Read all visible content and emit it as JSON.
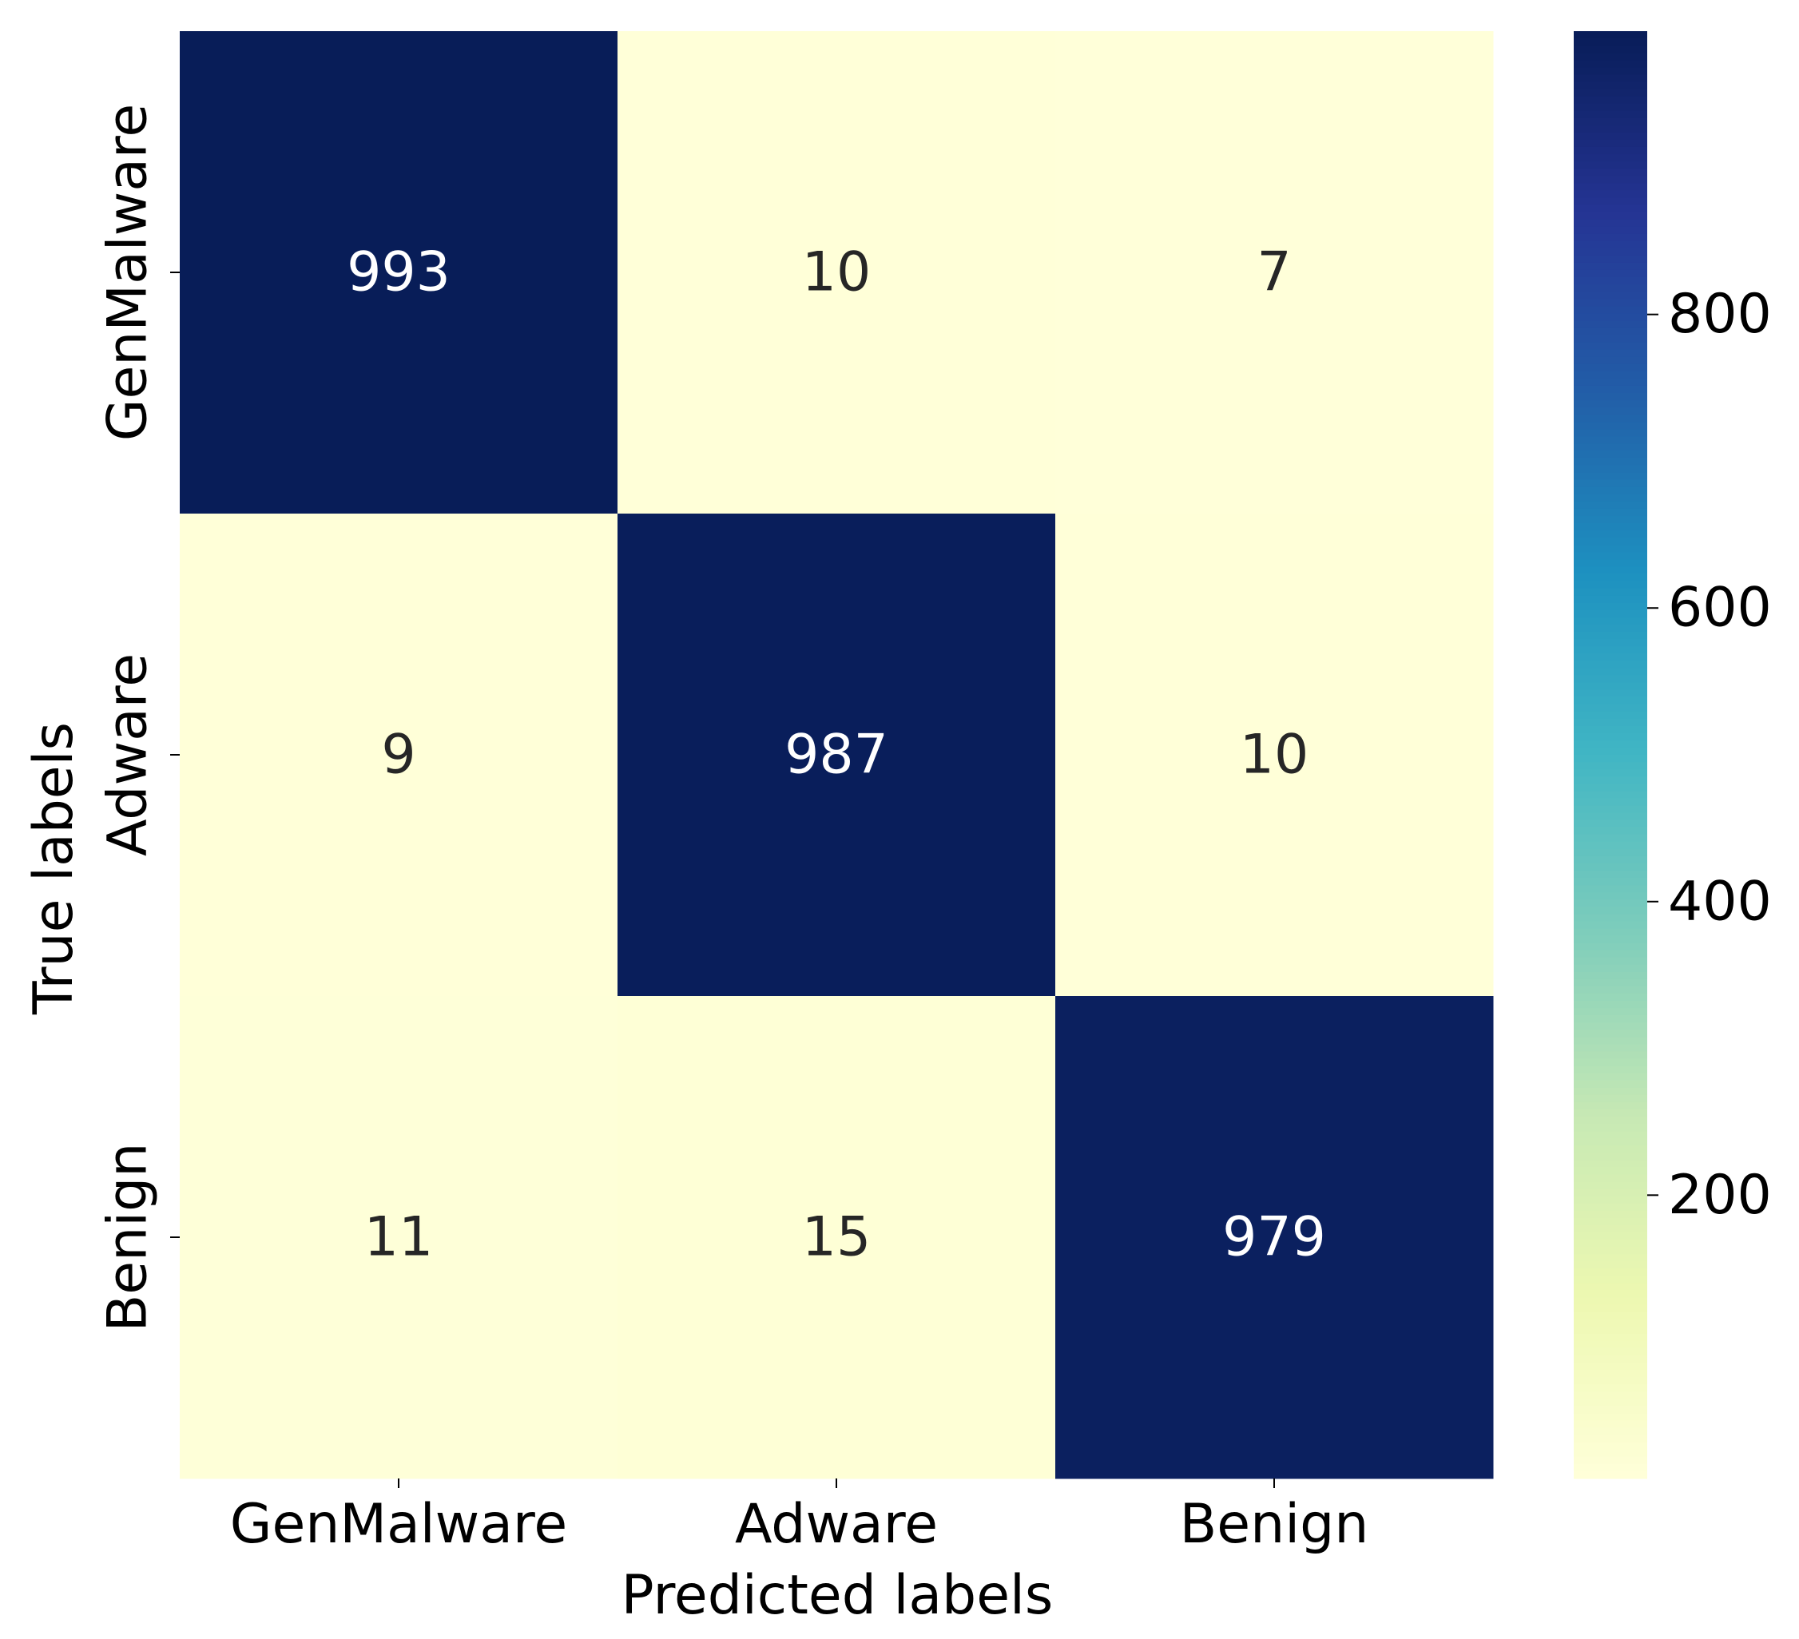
{
  "chart_data": {
    "type": "heatmap",
    "title": "",
    "xlabel": "Predicted labels",
    "ylabel": "True labels",
    "x_categories": [
      "GenMalware",
      "Adware",
      "Benign"
    ],
    "y_categories": [
      "GenMalware",
      "Adware",
      "Benign"
    ],
    "values": [
      [
        993,
        10,
        7
      ],
      [
        9,
        987,
        10
      ],
      [
        11,
        15,
        979
      ]
    ],
    "annotations": [
      [
        "993",
        "10",
        "7"
      ],
      [
        "9",
        "987",
        "10"
      ],
      [
        "11",
        "15",
        "979"
      ]
    ],
    "colormap": "YlGnBu",
    "color_range": [
      7,
      993
    ],
    "colorbar": {
      "ticks": [
        200,
        400,
        600,
        800
      ],
      "tick_labels": [
        "200",
        "400",
        "600",
        "800"
      ]
    },
    "colors": {
      "low": "#ffffd9",
      "high": "#081d58",
      "annotation_on_dark": "#ffffff",
      "annotation_on_light": "#262626"
    }
  }
}
